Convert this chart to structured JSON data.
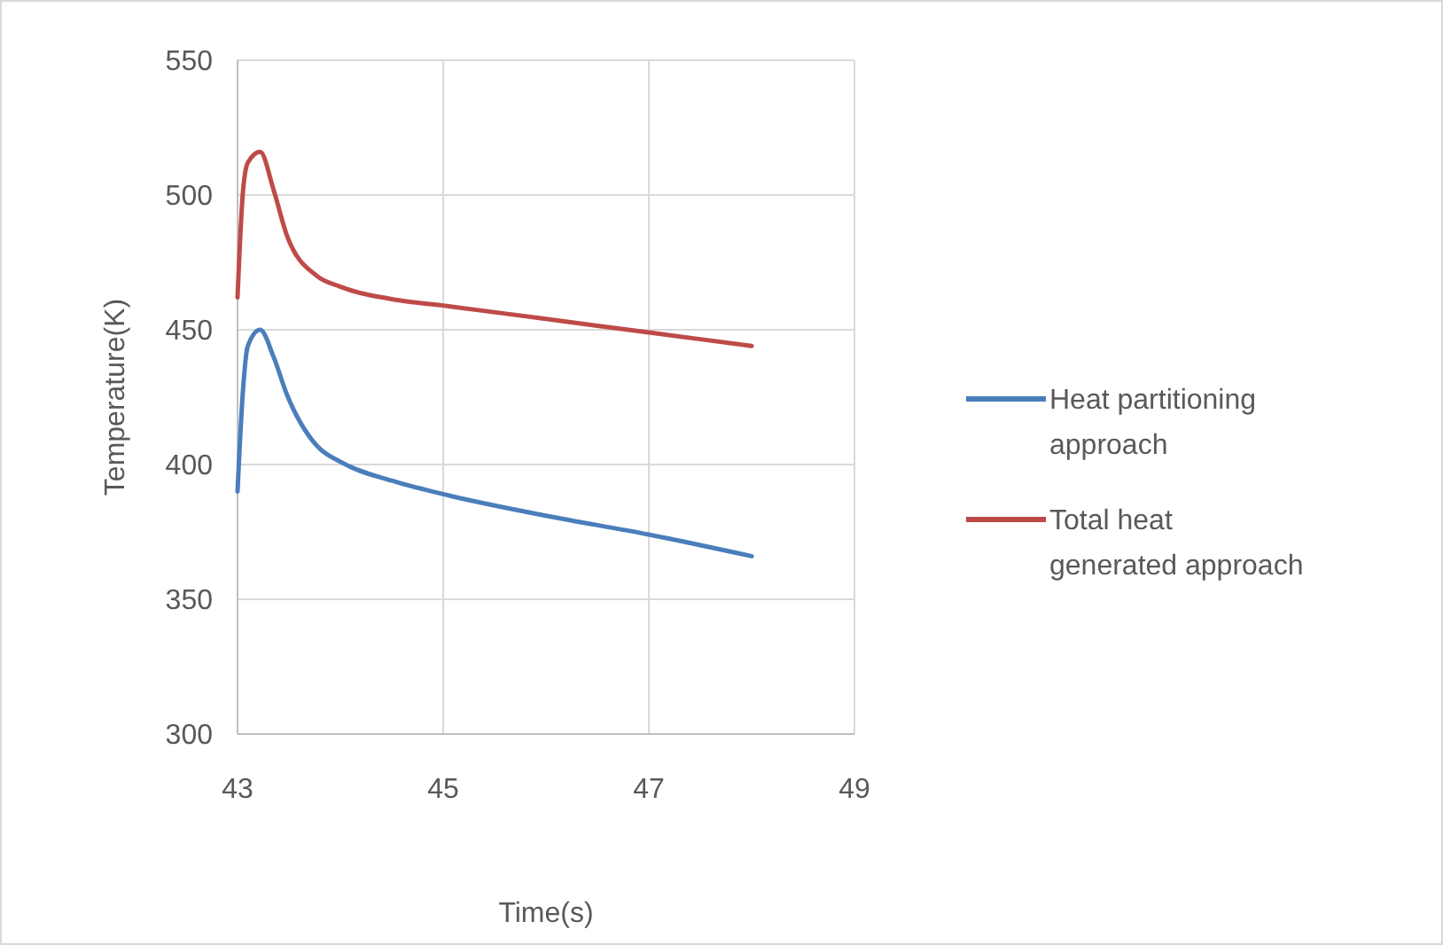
{
  "chart_data": {
    "type": "line",
    "xlabel": "Time(s)",
    "ylabel": "Temperature(K)",
    "xlim": [
      43,
      49
    ],
    "xticks": [
      43,
      45,
      47,
      49
    ],
    "ylim": [
      300,
      550
    ],
    "yticks": [
      300,
      350,
      400,
      450,
      500,
      550
    ],
    "grid": true,
    "legend": "right",
    "marker": "none",
    "line_style": "solid",
    "series": [
      {
        "name": "Heat partitioning approach",
        "color": "#4a7ebb",
        "x": [
          43,
          43.05,
          43.1,
          43.22,
          43.35,
          43.48,
          43.77,
          44,
          44.5,
          45,
          46,
          47,
          48
        ],
        "values": [
          390,
          426,
          444,
          450,
          440,
          426,
          407,
          401,
          394,
          389,
          381,
          374,
          366
        ]
      },
      {
        "name": "Total heat generated approach",
        "color": "#be4b48",
        "x": [
          43,
          43.05,
          43.1,
          43.22,
          43.35,
          43.48,
          43.77,
          44,
          44.56,
          45,
          46,
          47,
          48
        ],
        "values": [
          462,
          500,
          512,
          516,
          502,
          485,
          470,
          466,
          461,
          459,
          454,
          449,
          444
        ]
      }
    ]
  }
}
